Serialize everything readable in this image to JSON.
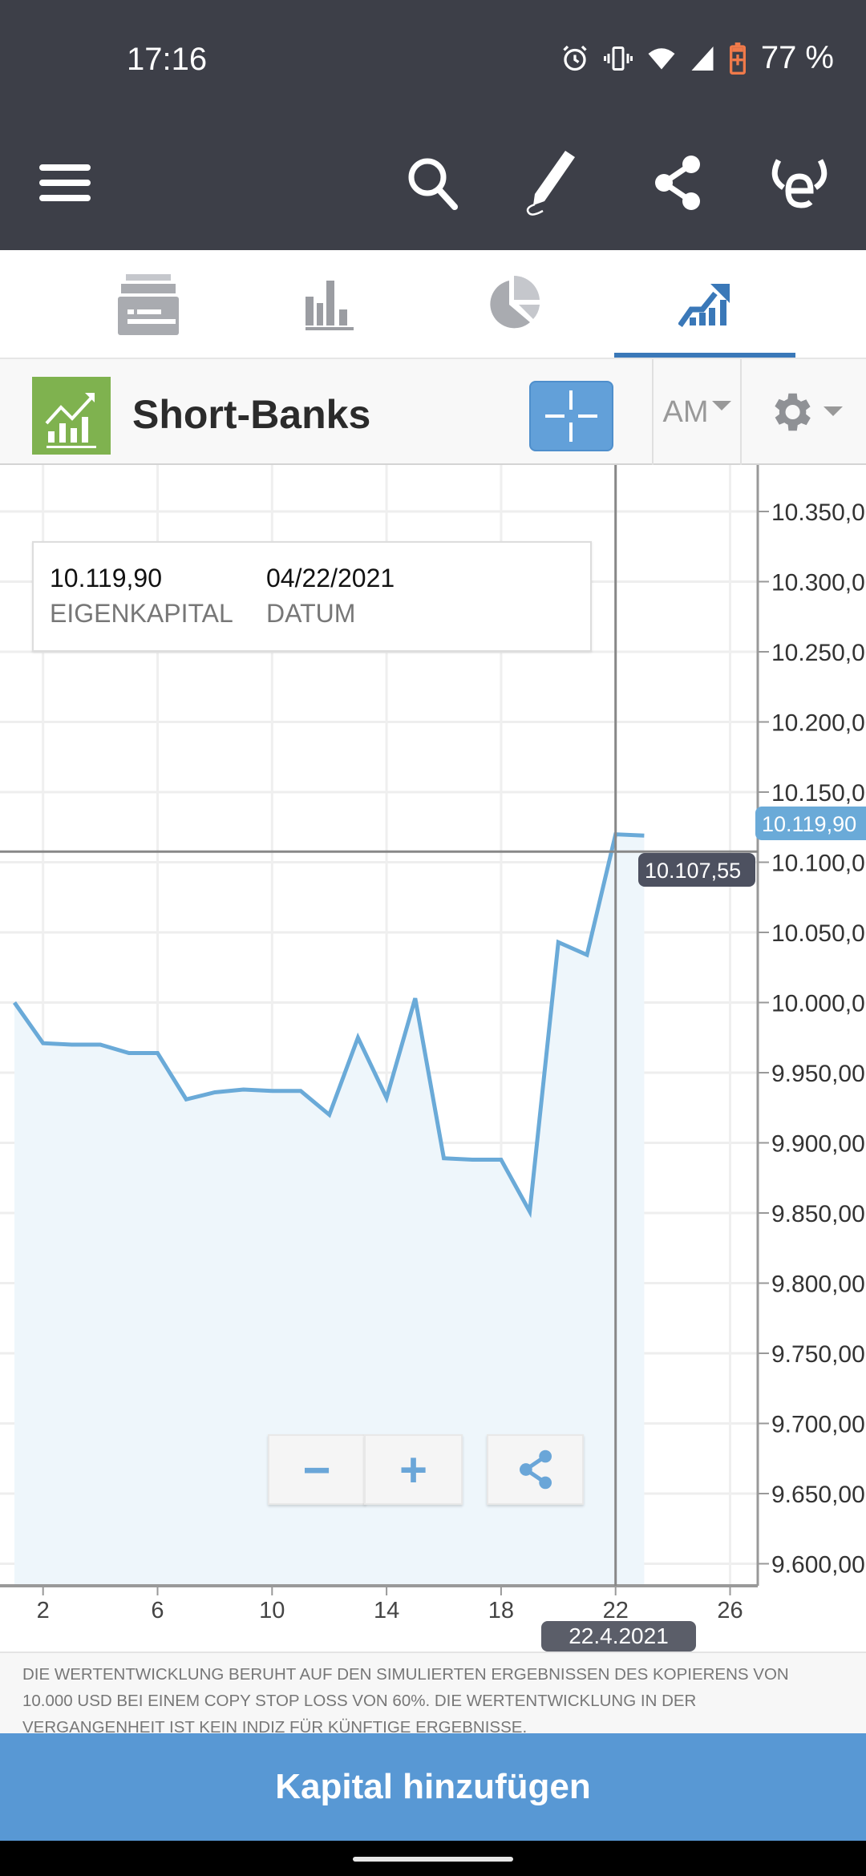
{
  "status_bar": {
    "time": "17:16",
    "battery": "77 %",
    "icons": [
      "alarm-icon",
      "vibrate-icon",
      "wifi-icon",
      "signal-icon",
      "battery-icon"
    ]
  },
  "toolbar": {
    "icons": [
      "menu-icon",
      "search-icon",
      "edit-icon",
      "share-icon",
      "etoro-logo-icon"
    ]
  },
  "tabs": [
    {
      "icon": "portfolio-icon",
      "active": false
    },
    {
      "icon": "bar-chart-icon",
      "active": false
    },
    {
      "icon": "pie-chart-icon",
      "active": false
    },
    {
      "icon": "performance-chart-icon",
      "active": true
    }
  ],
  "header": {
    "title": "Short-Banks",
    "range_select": "AM"
  },
  "tooltip": {
    "value": "10.119,90",
    "value_label": "EIGENKAPITAL",
    "date": "04/22/2021",
    "date_label": "DATUM"
  },
  "crosshair": {
    "y_value_label": "10.107,55",
    "last_value_label": "10.119,90",
    "date_label": "22.4.2021"
  },
  "colors": {
    "line": "#6aaad8",
    "fill": "#eef6fb",
    "accent": "#5898d4",
    "header": "#3d3f48"
  },
  "chart_data": {
    "type": "area",
    "x": [
      1,
      2,
      3,
      4,
      5,
      6,
      7,
      8,
      9,
      10,
      11,
      12,
      13,
      14,
      15,
      16,
      17,
      18,
      19,
      20,
      21,
      22,
      23
    ],
    "values": [
      10000,
      9971,
      9970,
      9970,
      9964,
      9964,
      9931,
      9936,
      9938,
      9937,
      9937,
      9920,
      9975,
      9932,
      10003,
      9889,
      9888,
      9888,
      9851,
      10043,
      10034,
      10119.9,
      10119
    ],
    "xticks": [
      "2",
      "6",
      "10",
      "14",
      "18",
      "22",
      "26"
    ],
    "xtick_values": [
      2,
      6,
      10,
      14,
      18,
      22,
      26
    ],
    "yticks": [
      "10.350,00",
      "10.300,00",
      "10.250,00",
      "10.200,00",
      "10.150,00",
      "10.100,00",
      "10.050,00",
      "10.000,00",
      "9.950,00",
      "9.900,00",
      "9.850,00",
      "9.800,00",
      "9.750,00",
      "9.700,00",
      "9.650,00",
      "9.600,00"
    ],
    "ytick_values": [
      10350,
      10300,
      10250,
      10200,
      10150,
      10100,
      10050,
      10000,
      9950,
      9900,
      9850,
      9800,
      9750,
      9700,
      9650,
      9600
    ],
    "ylim": [
      9590,
      10390
    ],
    "xlim": [
      0,
      27.5
    ],
    "grid": true,
    "crosshair_x": 22,
    "crosshair_y": 10107.55
  },
  "zoom": {
    "minus": "−",
    "plus": "+"
  },
  "disclaimer": [
    "DIE WERTENTWICKLUNG BERUHT AUF DEN SIMULIERTEN ERGEBNISSEN DES KOPIERENS VON",
    "10.000 USD BEI EINEM COPY STOP LOSS VON 60%. DIE WERTENTWICKLUNG IN DER",
    "VERGANGENHEIT IST KEIN INDIZ FÜR KÜNFTIGE ERGEBNISSE."
  ],
  "cta": "Kapital hinzufügen"
}
